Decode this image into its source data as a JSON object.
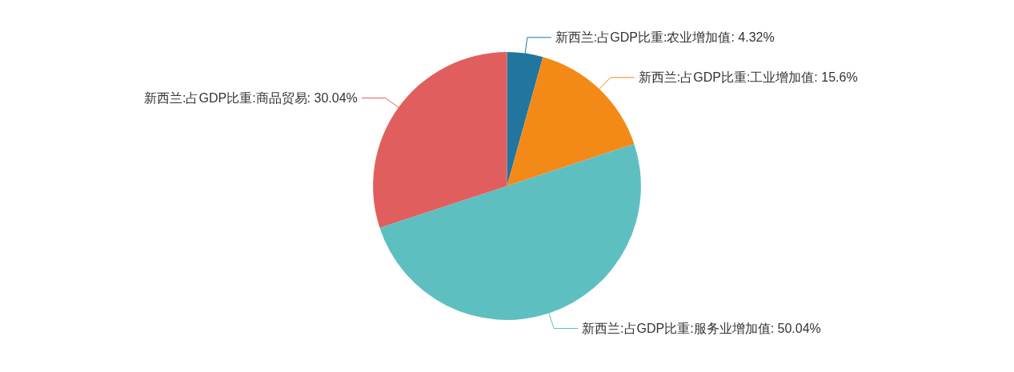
{
  "chart_data": {
    "type": "pie",
    "categories": [
      "新西兰:占GDP比重:农业增加值",
      "新西兰:占GDP比重:工业增加值",
      "新西兰:占GDP比重:服务业增加值",
      "新西兰:占GDP比重:商品贸易"
    ],
    "values": [
      4.32,
      15.6,
      50.04,
      30.04
    ],
    "colors": [
      "#21759e",
      "#f38a18",
      "#5ebfc1",
      "#e05f5e"
    ],
    "value_labels": [
      "4.32%",
      "15.6%",
      "50.04%",
      "30.04%"
    ],
    "legend": false
  }
}
